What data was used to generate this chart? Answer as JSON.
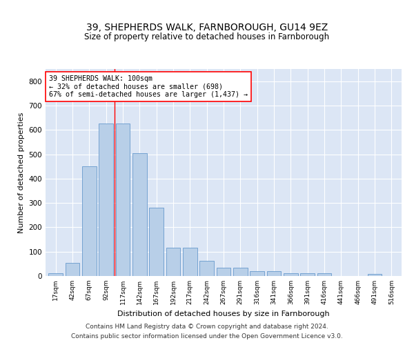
{
  "title": "39, SHEPHERDS WALK, FARNBOROUGH, GU14 9EZ",
  "subtitle": "Size of property relative to detached houses in Farnborough",
  "xlabel": "Distribution of detached houses by size in Farnborough",
  "ylabel": "Number of detached properties",
  "bar_labels": [
    "17sqm",
    "42sqm",
    "67sqm",
    "92sqm",
    "117sqm",
    "142sqm",
    "167sqm",
    "192sqm",
    "217sqm",
    "242sqm",
    "267sqm",
    "291sqm",
    "316sqm",
    "341sqm",
    "366sqm",
    "391sqm",
    "416sqm",
    "441sqm",
    "466sqm",
    "491sqm",
    "516sqm"
  ],
  "bar_values": [
    12,
    55,
    450,
    625,
    625,
    505,
    280,
    117,
    117,
    63,
    35,
    35,
    20,
    20,
    10,
    10,
    10,
    0,
    0,
    8,
    0
  ],
  "bar_color": "#b8cfe8",
  "bar_edgecolor": "#6699cc",
  "vline_x_index": 3,
  "annotation_text": "39 SHEPHERDS WALK: 100sqm\n← 32% of detached houses are smaller (698)\n67% of semi-detached houses are larger (1,437) →",
  "annotation_box_edgecolor": "red",
  "ylim": [
    0,
    850
  ],
  "yticks": [
    0,
    100,
    200,
    300,
    400,
    500,
    600,
    700,
    800
  ],
  "background_color": "#dce6f5",
  "footer_line1": "Contains HM Land Registry data © Crown copyright and database right 2024.",
  "footer_line2": "Contains public sector information licensed under the Open Government Licence v3.0."
}
